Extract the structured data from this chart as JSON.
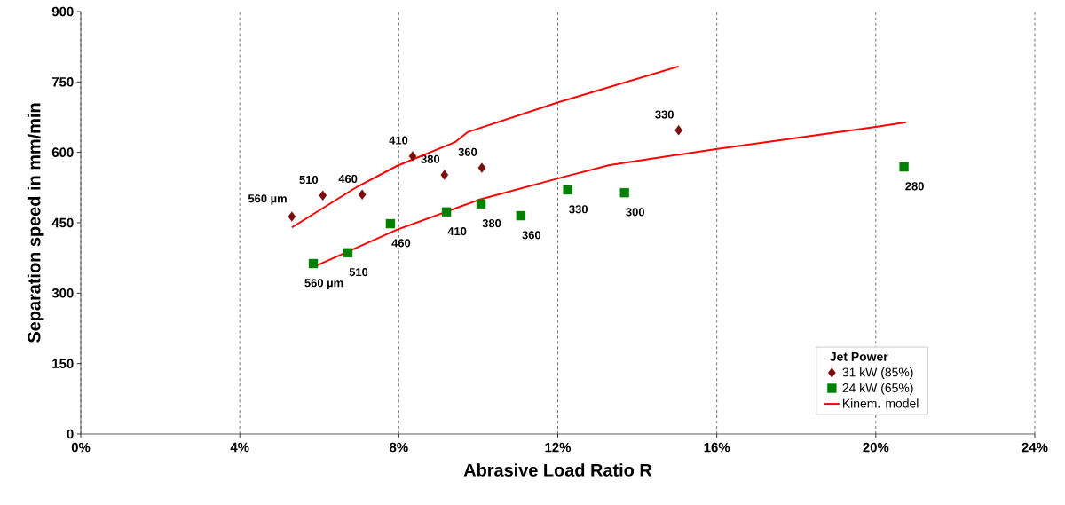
{
  "chart_data": {
    "type": "scatter",
    "xlabel": "Abrasive Load Ratio R",
    "ylabel": "Separation speed in mm/min",
    "legend_title": "Jet Power",
    "legend": "bottom right",
    "grid": "x",
    "xlim": [
      0,
      24
    ],
    "ylim": [
      0,
      900
    ],
    "xticks": [
      {
        "value": 0,
        "label": "0%"
      },
      {
        "value": 4,
        "label": "4%"
      },
      {
        "value": 8,
        "label": "8%"
      },
      {
        "value": 12,
        "label": "12%"
      },
      {
        "value": 16,
        "label": "16%"
      },
      {
        "value": 20,
        "label": "20%"
      },
      {
        "value": 24,
        "label": "24%"
      }
    ],
    "yticks": [
      0,
      150,
      300,
      450,
      600,
      750,
      900
    ],
    "series": [
      {
        "name": "31 kW (85%)",
        "marker": "diamond",
        "color": "#7b0c0c",
        "x": [
          5.31,
          6.09,
          7.08,
          8.35,
          9.15,
          10.09,
          15.04
        ],
        "values": [
          463,
          508,
          510,
          592,
          552,
          567,
          647
        ]
      },
      {
        "name": "24 kW (65%)",
        "marker": "square",
        "color": "#008000",
        "x": [
          5.85,
          6.72,
          7.79,
          9.2,
          10.07,
          11.07,
          12.25,
          13.68,
          20.71
        ],
        "values": [
          363,
          386,
          448,
          473,
          490,
          465,
          520,
          514,
          569
        ]
      },
      {
        "name": "Kinem. model",
        "type": "line",
        "marker": "none",
        "line_style": "solid",
        "color": "#ff0000",
        "x": [
          5.31,
          6.96,
          7.95,
          9.42,
          9.73,
          12.03,
          15.04
        ],
        "values": [
          440,
          527,
          571,
          622,
          643,
          707,
          783
        ]
      },
      {
        "type": "line",
        "marker": "none",
        "line_style": "solid",
        "color": "#ff0000",
        "x": [
          5.89,
          7.95,
          10.02,
          12.25,
          13.3,
          15.98,
          20.0,
          20.76
        ],
        "values": [
          357,
          435,
          499,
          550,
          573,
          607,
          654,
          664
        ]
      }
    ],
    "annotations": [
      {
        "text": "560 µm",
        "x": 5.31,
        "y": 463
      },
      {
        "text": "510",
        "x": 6.09,
        "y": 508
      },
      {
        "text": "460",
        "x": 7.08,
        "y": 510
      },
      {
        "text": "410",
        "x": 8.35,
        "y": 592
      },
      {
        "text": "380",
        "x": 9.15,
        "y": 552
      },
      {
        "text": "360",
        "x": 10.09,
        "y": 567
      },
      {
        "text": "330",
        "x": 15.04,
        "y": 647
      },
      {
        "text": "560 µm",
        "x": 5.85,
        "y": 363
      },
      {
        "text": "510",
        "x": 6.72,
        "y": 386
      },
      {
        "text": "460",
        "x": 7.79,
        "y": 448
      },
      {
        "text": "410",
        "x": 9.2,
        "y": 473
      },
      {
        "text": "380",
        "x": 10.07,
        "y": 490
      },
      {
        "text": "360",
        "x": 11.07,
        "y": 465
      },
      {
        "text": "330",
        "x": 12.25,
        "y": 520
      },
      {
        "text": "300",
        "x": 13.68,
        "y": 514
      },
      {
        "text": "280",
        "x": 20.71,
        "y": 569
      }
    ]
  }
}
